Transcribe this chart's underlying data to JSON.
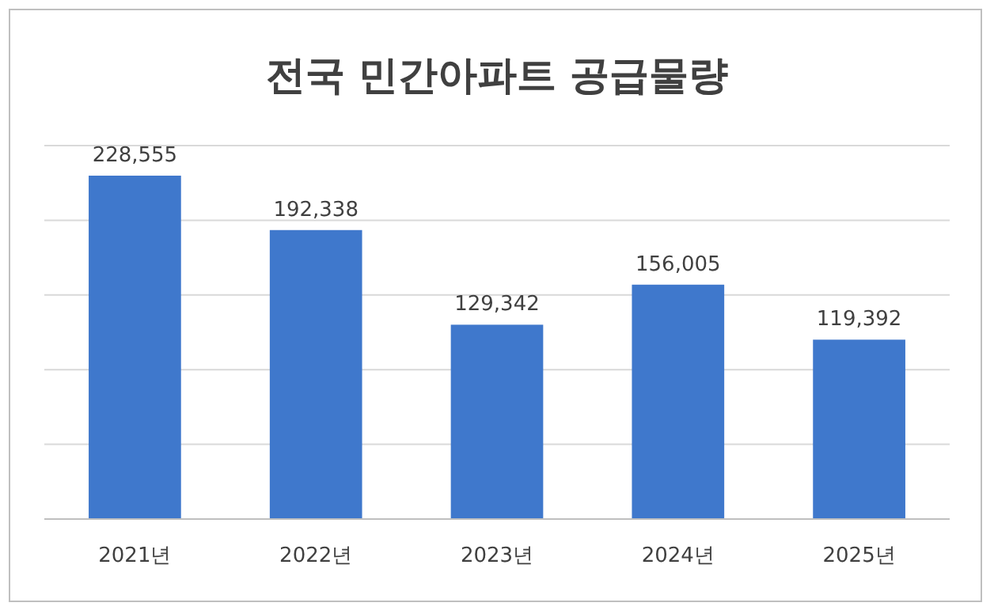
{
  "chart_data": {
    "type": "bar",
    "title": "전국 민간아파트 공급물량",
    "categories": [
      "2021년",
      "2022년",
      "2023년",
      "2024년",
      "2025년"
    ],
    "values": [
      228555,
      192338,
      129342,
      156005,
      119392
    ],
    "value_labels": [
      "228,555",
      "192,338",
      "129,342",
      "156,005",
      "119,392"
    ],
    "color": "#3f78cc",
    "tick_labels": "x"
  }
}
